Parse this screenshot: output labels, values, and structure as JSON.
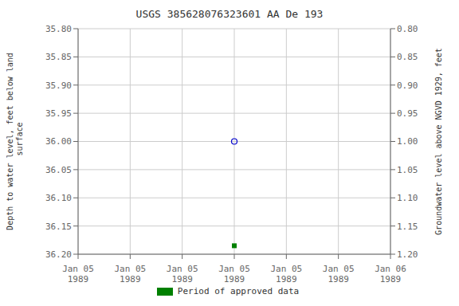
{
  "chart_data": {
    "type": "scatter",
    "title": "USGS 385628076323601 AA De 193",
    "ylabel": "Depth to water level, feet below land\n surface",
    "y2label": "Groundwater level above NGVD 1929, feet",
    "categories": [
      "Jan 05\n1989",
      "Jan 05\n1989",
      "Jan 05\n1989",
      "Jan 05\n1989",
      "Jan 05\n1989",
      "Jan 05\n1989",
      "Jan 06\n1989"
    ],
    "series": [
      {
        "values": [
          null,
          null,
          null,
          36.0,
          null,
          null,
          null
        ],
        "color": "#0000cc",
        "marker": "circle"
      },
      {
        "name": "Period of approved data",
        "values": [
          null,
          null,
          null,
          36.185,
          null,
          null,
          null
        ],
        "color": "#008000",
        "marker": "square"
      }
    ],
    "ylim": [
      36.2,
      35.8
    ],
    "yticks": [
      {
        "value": 35.8,
        "label": "35.80"
      },
      {
        "value": 35.85,
        "label": "35.85"
      },
      {
        "value": 35.9,
        "label": "35.90"
      },
      {
        "value": 35.95,
        "label": "35.95"
      },
      {
        "value": 36.0,
        "label": "36.00"
      },
      {
        "value": 36.05,
        "label": "36.05"
      },
      {
        "value": 36.1,
        "label": "36.10"
      },
      {
        "value": 36.15,
        "label": "36.15"
      },
      {
        "value": 36.2,
        "label": "36.20"
      }
    ],
    "y2lim": [
      1.2,
      0.8
    ],
    "y2ticks": [
      {
        "value": 1.2,
        "label": "1.20"
      },
      {
        "value": 1.15,
        "label": "1.15"
      },
      {
        "value": 1.1,
        "label": "1.10"
      },
      {
        "value": 1.05,
        "label": "1.05"
      },
      {
        "value": 1.0,
        "label": "1.00"
      },
      {
        "value": 0.95,
        "label": "0.95"
      },
      {
        "value": 0.9,
        "label": "0.90"
      },
      {
        "value": 0.85,
        "label": "0.85"
      },
      {
        "value": 0.8,
        "label": "0.80"
      }
    ],
    "grid": true,
    "legend": "bottom"
  }
}
